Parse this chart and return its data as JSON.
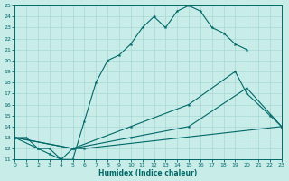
{
  "xlabel": "Humidex (Indice chaleur)",
  "bg_color": "#c8ece8",
  "line_color": "#006868",
  "grid_color": "#a8d8d4",
  "xlim": [
    0,
    23
  ],
  "ylim": [
    11,
    25
  ],
  "xticks": [
    0,
    1,
    2,
    3,
    4,
    5,
    6,
    7,
    8,
    9,
    10,
    11,
    12,
    13,
    14,
    15,
    16,
    17,
    18,
    19,
    20,
    21,
    22,
    23
  ],
  "yticks": [
    11,
    12,
    13,
    14,
    15,
    16,
    17,
    18,
    19,
    20,
    21,
    22,
    23,
    24,
    25
  ],
  "curve1_x": [
    0,
    1,
    2,
    3,
    4,
    5,
    6,
    7,
    8,
    9,
    10,
    11,
    12,
    13,
    14,
    15,
    16,
    17,
    18,
    19,
    20
  ],
  "curve1_y": [
    13,
    13,
    12,
    12,
    11,
    11,
    14.5,
    18,
    20,
    20.5,
    21.5,
    23,
    24,
    23,
    24.5,
    25,
    24.5,
    23,
    22.5,
    21.5,
    21
  ],
  "curve2_x": [
    0,
    2,
    3,
    4,
    5,
    6,
    23
  ],
  "curve2_y": [
    13,
    12,
    11.5,
    11,
    12,
    12,
    14
  ],
  "curve3_x": [
    0,
    5,
    10,
    15,
    19,
    20,
    22,
    23
  ],
  "curve3_y": [
    13,
    12,
    14,
    16,
    19,
    17,
    15,
    14
  ],
  "curve4_x": [
    0,
    5,
    10,
    15,
    20,
    23
  ],
  "curve4_y": [
    13,
    12,
    13,
    14,
    17.5,
    14
  ]
}
